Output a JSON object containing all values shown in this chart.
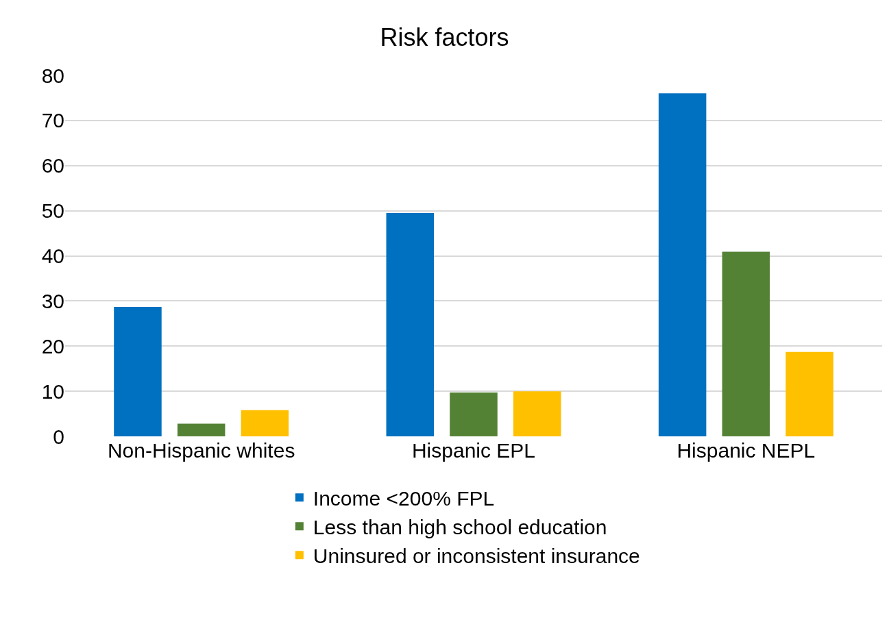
{
  "chart_data": {
    "type": "bar",
    "title": "Risk factors",
    "categories": [
      "Non-Hispanic whites",
      "Hispanic EPL",
      "Hispanic NEPL"
    ],
    "series": [
      {
        "name": "Income <200% FPL",
        "color": "#0070c0",
        "values": [
          28.7,
          49.5,
          76.0
        ]
      },
      {
        "name": "Less than high school education",
        "color": "#548235",
        "values": [
          2.8,
          9.7,
          40.9
        ]
      },
      {
        "name": "Uninsured or inconsistent insurance",
        "color": "#ffc000",
        "values": [
          5.8,
          10.0,
          18.7
        ]
      }
    ],
    "ylim": [
      0,
      80
    ],
    "yticks": [
      0,
      10,
      20,
      30,
      40,
      50,
      60,
      70,
      80
    ],
    "grid": "y",
    "legend": "bottom"
  }
}
